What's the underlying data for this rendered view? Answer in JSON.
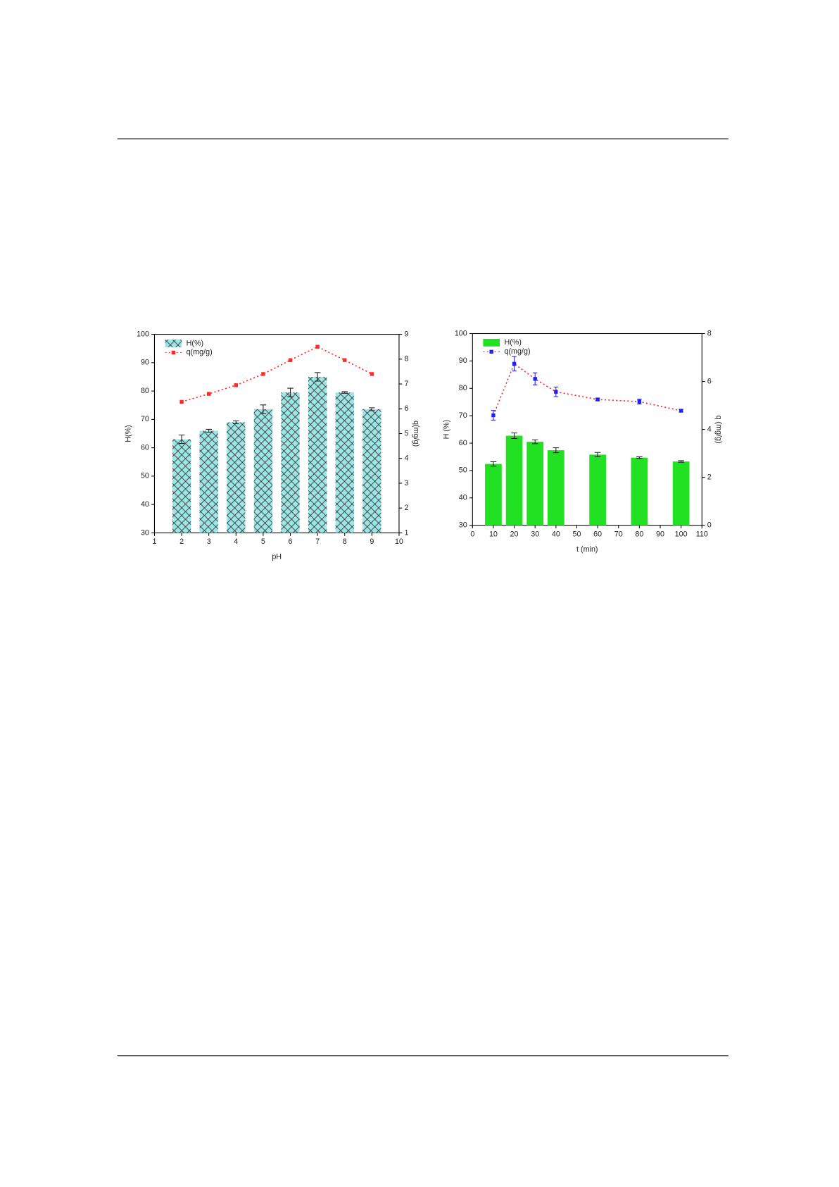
{
  "chart_data": [
    {
      "type": "bar-line",
      "xlabel": "pH",
      "ylabel": "H(%)",
      "y2label": "q(mg/g)",
      "xlim": [
        1,
        10
      ],
      "xticks": [
        1,
        2,
        3,
        4,
        5,
        6,
        7,
        8,
        9,
        10
      ],
      "ylim": [
        30,
        100
      ],
      "yticks": [
        30,
        40,
        50,
        60,
        70,
        80,
        90,
        100
      ],
      "y2lim": [
        1,
        9
      ],
      "y2ticks": [
        1,
        2,
        3,
        4,
        5,
        6,
        7,
        8,
        9
      ],
      "legend": "upper left",
      "series": [
        {
          "name": "H(%)",
          "type": "bar",
          "color": "#9ee6e6",
          "hatch": true,
          "x": [
            2,
            3,
            4,
            5,
            6,
            7,
            8,
            9
          ],
          "values": [
            63,
            66,
            69,
            73.6,
            79.5,
            85,
            79.5,
            73.6
          ],
          "errors": [
            1.5,
            0.5,
            0.5,
            1.5,
            1.5,
            1.5,
            0.3,
            0.5
          ]
        },
        {
          "name": "q(mg/g)",
          "type": "line",
          "axis": "y2",
          "color": "#ff2a2a",
          "marker_color": "#ff2a2a",
          "line_style": "dotted",
          "x": [
            2,
            3,
            4,
            5,
            6,
            7,
            8,
            9
          ],
          "values": [
            6.28,
            6.6,
            6.95,
            7.4,
            7.96,
            8.5,
            7.96,
            7.4
          ]
        }
      ]
    },
    {
      "type": "bar-line",
      "xlabel": "t (min)",
      "ylabel": "H (%)",
      "y2label": "q (mg/g)",
      "xlim": [
        0,
        110
      ],
      "xticks": [
        0,
        10,
        20,
        30,
        40,
        50,
        60,
        70,
        80,
        90,
        100,
        110
      ],
      "ylim": [
        30,
        100
      ],
      "yticks": [
        30,
        40,
        50,
        60,
        70,
        80,
        90,
        100
      ],
      "y2lim": [
        0,
        8
      ],
      "y2ticks": [
        0,
        2,
        4,
        6,
        8
      ],
      "legend": "upper left",
      "series": [
        {
          "name": "H(%)",
          "type": "bar",
          "color": "#22e022",
          "hatch": false,
          "x": [
            10,
            20,
            30,
            40,
            60,
            80,
            100
          ],
          "values": [
            52.4,
            62.7,
            60.5,
            57.4,
            55.8,
            54.7,
            53.3
          ],
          "errors": [
            0.8,
            1,
            0.7,
            0.9,
            0.8,
            0.3,
            0.3
          ]
        },
        {
          "name": "q(mg/g)",
          "type": "line",
          "axis": "y2",
          "color": "#ff2a2a",
          "marker_color": "#2222ee",
          "line_style": "dotted",
          "x": [
            10,
            20,
            30,
            40,
            60,
            80,
            100
          ],
          "values": [
            4.59,
            6.74,
            6.11,
            5.57,
            5.25,
            5.16,
            4.78
          ],
          "errors": [
            0.2,
            0.3,
            0.25,
            0.2,
            0.05,
            0.1,
            0.05
          ]
        }
      ]
    }
  ]
}
